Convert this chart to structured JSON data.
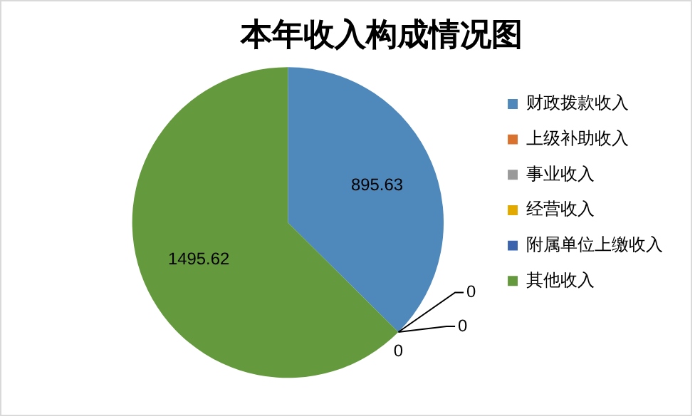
{
  "chart_data": {
    "type": "pie",
    "title": "本年收入构成情况图",
    "categories": [
      "财政拨款收入",
      "上级补助收入",
      "事业收入",
      "经营收入",
      "附属单位上缴收入",
      "其他收入"
    ],
    "values": [
      895.63,
      0,
      0,
      0,
      0,
      1495.62
    ],
    "colors": [
      "#4f88bb",
      "#d9722e",
      "#9a9a9a",
      "#e2aa00",
      "#3b64ad",
      "#649a3d"
    ],
    "value_labels": [
      "895.63",
      "0",
      "0",
      "0",
      null,
      "1495.62"
    ],
    "legend": "right"
  }
}
